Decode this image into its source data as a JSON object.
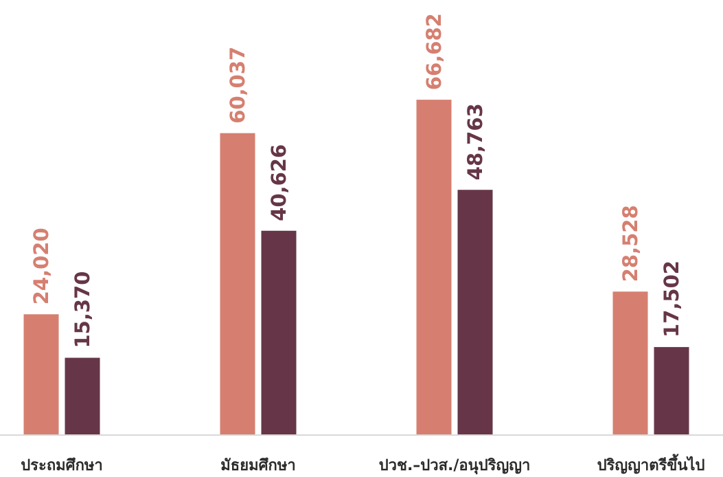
{
  "chart_data": {
    "type": "bar",
    "categories": [
      "ประถมศึกษา",
      "มัธยมศึกษา",
      "ปวช.–ปวส./อนุปริญญา",
      "ปริญญาตรีขึ้นไป"
    ],
    "series": [
      {
        "values": [
          24020,
          60037,
          66682,
          28528
        ],
        "color": "#d67f70",
        "labels": [
          "24,020",
          "60,037",
          "66,682",
          "28,528"
        ]
      },
      {
        "values": [
          15370,
          40626,
          48763,
          17502
        ],
        "color": "#663648",
        "labels": [
          "15,370",
          "40,626",
          "48,763",
          "17,502"
        ]
      }
    ],
    "title": "",
    "xlabel": "",
    "ylabel": "",
    "ylim": [
      0,
      90000
    ],
    "grid": false,
    "legend": "none",
    "axis_color": "#d9d9d9"
  }
}
